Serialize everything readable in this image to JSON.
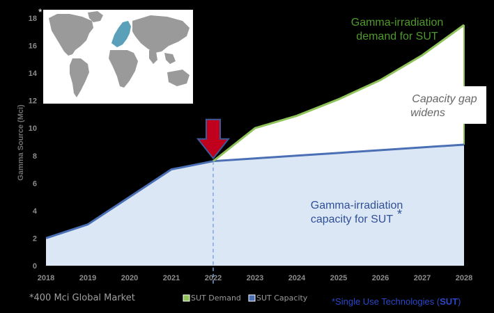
{
  "colors": {
    "capacity_line": "#4a6fb5",
    "capacity_fill": "#dce7f6",
    "demand_line": "#8fc35a",
    "demand_fill": "#ffffff",
    "demand_text": "#4e9a2a",
    "capacity_text": "#2f4f97",
    "arrow": "#c0001c",
    "arrow_outline": "#3b5b9a",
    "map_land": "#9a9a9a",
    "map_europe": "#5aa0b8",
    "sut_note": "#2c48c8"
  },
  "chart_data": {
    "type": "area",
    "x": [
      2018,
      2019,
      2020,
      2021,
      2022,
      2023,
      2024,
      2025,
      2026,
      2027,
      2028
    ],
    "series": [
      {
        "name": "SUT Demand",
        "x": [
          2022,
          2023,
          2024,
          2025,
          2026,
          2027,
          2028
        ],
        "values": [
          7.6,
          10.0,
          10.9,
          12.1,
          13.5,
          15.3,
          17.5
        ]
      },
      {
        "name": "SUT Capacity",
        "x": [
          2018,
          2019,
          2020,
          2021,
          2022,
          2023,
          2024,
          2025,
          2026,
          2027,
          2028
        ],
        "values": [
          2.0,
          3.0,
          5.0,
          7.0,
          7.6,
          7.8,
          8.0,
          8.2,
          8.4,
          8.6,
          8.8
        ]
      }
    ],
    "ylabel": "Gamma Source (Mci)",
    "xlabel": "",
    "ylim": [
      0,
      18
    ],
    "yticks": [
      0,
      2,
      4,
      6,
      8,
      10,
      12,
      14,
      16,
      18
    ],
    "xticks": [
      "2018",
      "2019",
      "2020",
      "2021",
      "2022",
      "2023",
      "2024",
      "2025",
      "2026",
      "2027",
      "2028"
    ],
    "marker_year": 2022,
    "legend": [
      "SUT Demand",
      "SUT Capacity"
    ],
    "legend_position": "bottom"
  },
  "annotations": {
    "asterisk_top": "*",
    "demand_line1": "Gamma-irradiation",
    "demand_line2": "demand for SUT",
    "gap_line1": "Capacity gap",
    "gap_line2": "widens",
    "capacity_line1": "Gamma-irradiation",
    "capacity_line2": "capacity for SUT",
    "capacity_asterisk": "*",
    "global_market": "*400 Mci Global Market",
    "sut_note_prefix": "*Single Use Technologies (",
    "sut_note_bold": "SUT",
    "sut_note_suffix": ")"
  }
}
